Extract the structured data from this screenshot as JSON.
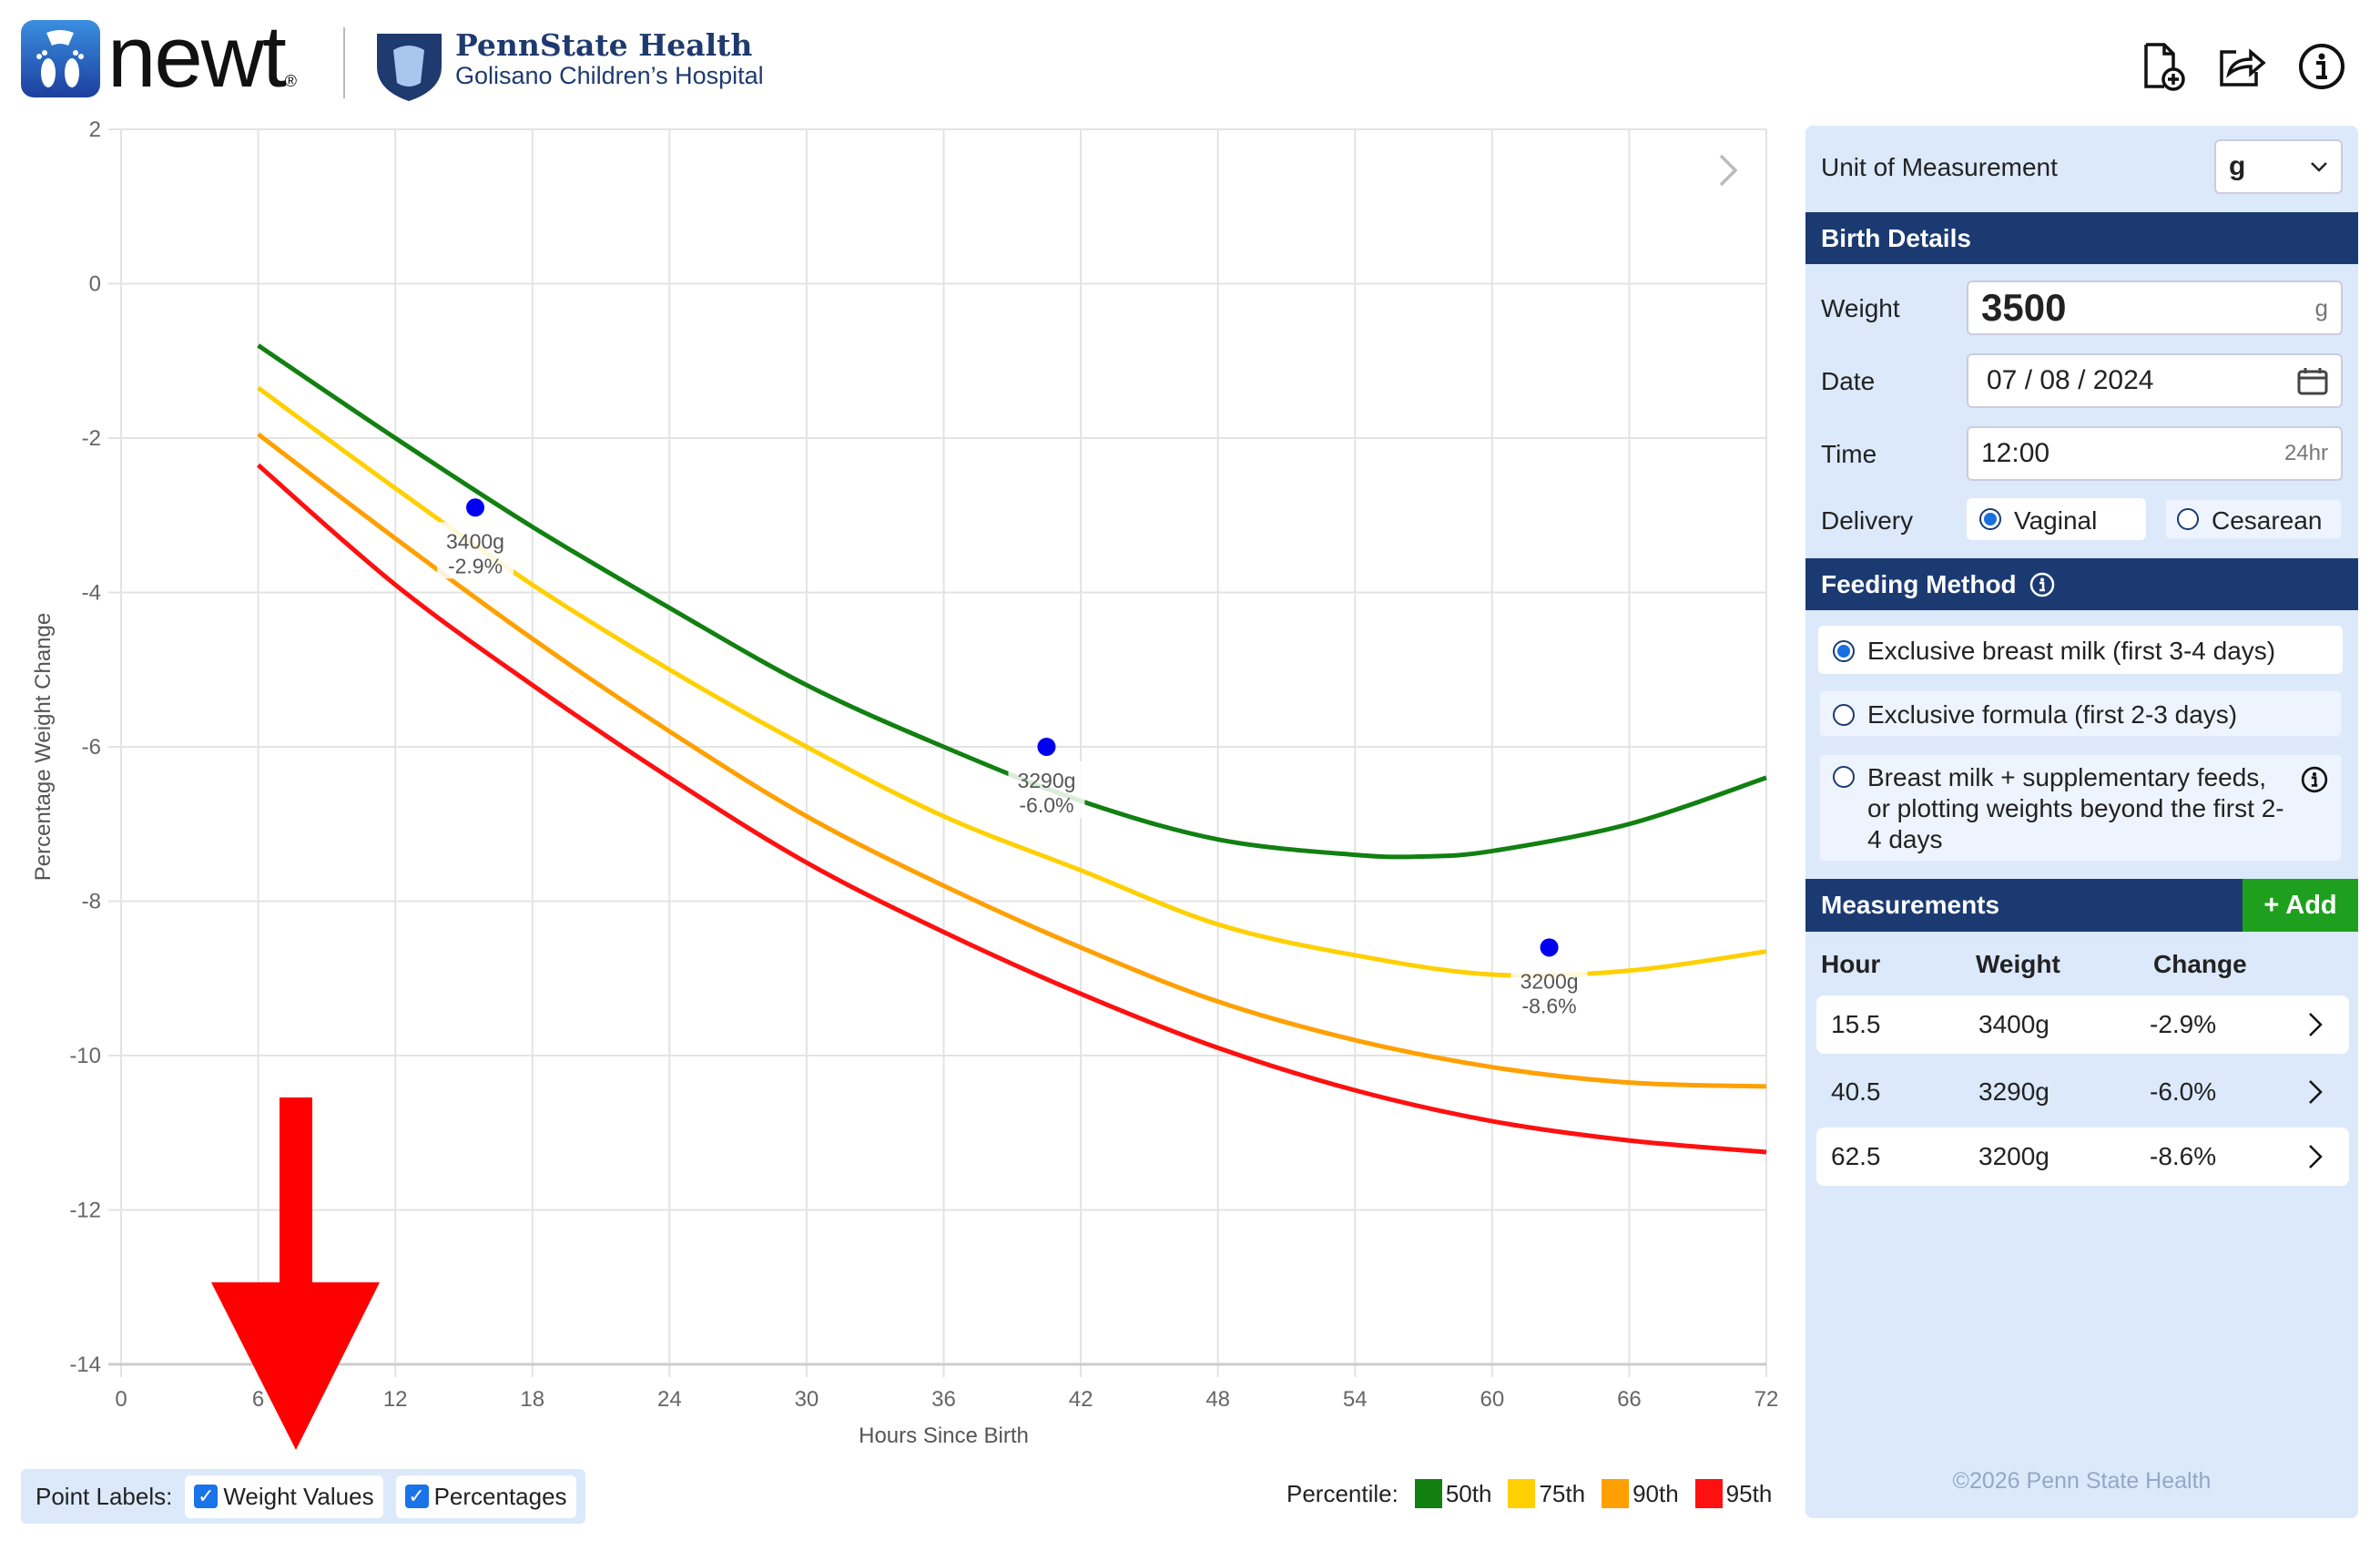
{
  "header": {
    "app_name": "newt",
    "registered": "®",
    "org_name": "PennState Health",
    "org_sub": "Golisano Children’s Hospital",
    "icons": [
      "new-file-icon",
      "share-icon",
      "info-icon"
    ]
  },
  "panel": {
    "unit_label": "Unit of Measurement",
    "unit_value": "g",
    "birth_title": "Birth Details",
    "weight_label": "Weight",
    "weight_value": "3500",
    "weight_unit": "g",
    "date_label": "Date",
    "date_value": "07 / 08 / 2024",
    "time_label": "Time",
    "time_value": "12:00",
    "time_hint": "24hr",
    "delivery_label": "Delivery",
    "delivery_options": [
      "Vaginal",
      "Cesarean"
    ],
    "delivery_selected": "Vaginal",
    "feeding_title": "Feeding Method",
    "feeding_options": [
      "Exclusive breast milk (first 3-4 days)",
      "Exclusive formula (first 2-3 days)",
      "Breast milk + supplementary feeds, or plotting weights beyond the first 2-4 days"
    ],
    "feeding_selected": 0,
    "measurements_title": "Measurements",
    "add_label": "+ Add",
    "columns": [
      "Hour",
      "Weight",
      "Change"
    ],
    "rows": [
      {
        "hour": "15.5",
        "weight": "3400g",
        "change": "-2.9%"
      },
      {
        "hour": "40.5",
        "weight": "3290g",
        "change": "-6.0%"
      },
      {
        "hour": "62.5",
        "weight": "3200g",
        "change": "-8.6%"
      }
    ],
    "footer": "©2026 Penn State Health"
  },
  "controls": {
    "point_labels": "Point Labels:",
    "weight_values": "Weight Values",
    "percentages": "Percentages",
    "weight_checked": true,
    "percent_checked": true,
    "percentile_label": "Percentile:"
  },
  "chart_data": {
    "type": "line",
    "xlabel": "Hours Since Birth",
    "ylabel": "Percentage Weight Change",
    "xlim": [
      0,
      72
    ],
    "ylim": [
      -14,
      2
    ],
    "xticks": [
      0,
      6,
      12,
      18,
      24,
      30,
      36,
      42,
      48,
      54,
      60,
      66,
      72
    ],
    "yticks": [
      2,
      0,
      -2,
      -4,
      -6,
      -8,
      -10,
      -12,
      -14
    ],
    "grid": true,
    "legend": "bottom-right",
    "series": [
      {
        "name": "50th",
        "color": "#118011",
        "x": [
          6,
          12,
          18,
          24,
          30,
          36,
          42,
          48,
          54,
          57,
          60,
          66,
          72
        ],
        "y": [
          -0.8,
          -2.0,
          -3.15,
          -4.2,
          -5.2,
          -6.0,
          -6.7,
          -7.2,
          -7.4,
          -7.42,
          -7.35,
          -7.0,
          -6.4
        ]
      },
      {
        "name": "75th",
        "color": "#ffd000",
        "x": [
          6,
          12,
          18,
          24,
          30,
          36,
          42,
          48,
          54,
          60,
          66,
          72
        ],
        "y": [
          -1.35,
          -2.65,
          -3.9,
          -5.0,
          -6.0,
          -6.9,
          -7.6,
          -8.3,
          -8.7,
          -8.95,
          -8.9,
          -8.65
        ]
      },
      {
        "name": "90th",
        "color": "#ffa000",
        "x": [
          6,
          12,
          18,
          24,
          30,
          36,
          42,
          48,
          54,
          60,
          66,
          72
        ],
        "y": [
          -1.95,
          -3.3,
          -4.6,
          -5.8,
          -6.9,
          -7.8,
          -8.6,
          -9.3,
          -9.8,
          -10.15,
          -10.35,
          -10.4
        ]
      },
      {
        "name": "95th",
        "color": "#ff1010",
        "x": [
          6,
          12,
          18,
          24,
          30,
          36,
          42,
          48,
          54,
          60,
          66,
          72
        ],
        "y": [
          -2.35,
          -3.9,
          -5.2,
          -6.4,
          -7.5,
          -8.4,
          -9.2,
          -9.9,
          -10.45,
          -10.85,
          -11.1,
          -11.25
        ]
      }
    ],
    "points": {
      "color": "#0000ee",
      "x": [
        15.5,
        40.5,
        62.5
      ],
      "y": [
        -2.9,
        -6.0,
        -8.6
      ],
      "weight_labels": [
        "3400g",
        "3290g",
        "3200g"
      ],
      "percent_labels": [
        "-2.9%",
        "-6.0%",
        "-8.6%"
      ]
    }
  },
  "annotation": {
    "arrow_color": "#ff0000"
  }
}
